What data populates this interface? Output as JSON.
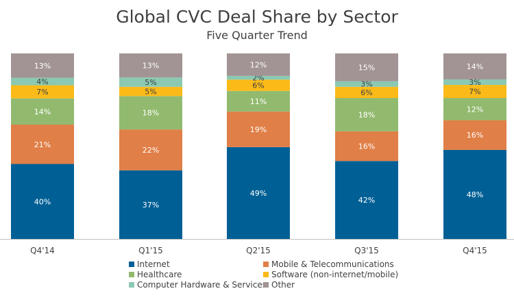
{
  "chart_data": {
    "type": "bar",
    "stacked": true,
    "title": "Global CVC Deal Share by Sector",
    "subtitle": "Five Quarter Trend",
    "categories": [
      "Q4'14",
      "Q1'15",
      "Q2'15",
      "Q3'15",
      "Q4'15"
    ],
    "series": [
      {
        "name": "Internet",
        "color": "#006096",
        "values": [
          40,
          37,
          49,
          42,
          48
        ]
      },
      {
        "name": "Mobile & Telecommunications",
        "color": "#E07F47",
        "values": [
          21,
          22,
          19,
          16,
          16
        ]
      },
      {
        "name": "Healthcare",
        "color": "#92BA6F",
        "values": [
          14,
          18,
          11,
          18,
          12
        ]
      },
      {
        "name": "Software (non-internet/mobile)",
        "color": "#FBBA18",
        "values": [
          7,
          5,
          6,
          6,
          7
        ]
      },
      {
        "name": "Computer Hardware & Services",
        "color": "#8BC9B2",
        "values": [
          4,
          5,
          2,
          3,
          3
        ]
      },
      {
        "name": "Other",
        "color": "#A29494",
        "values": [
          13,
          13,
          12,
          15,
          14
        ]
      }
    ],
    "data_labels": [
      [
        "40%",
        "37%",
        "49%",
        "42%",
        "48%"
      ],
      [
        "21%",
        "22%",
        "19%",
        "16%",
        "16%"
      ],
      [
        "14%",
        "18%",
        "11%",
        "18%",
        "12%"
      ],
      [
        "7%",
        "5%",
        "6%",
        "6%",
        "7%"
      ],
      [
        "4%",
        "5%",
        "2%",
        "3%",
        "3%"
      ],
      [
        "13%",
        "13%",
        "12%",
        "15%",
        "14%"
      ]
    ],
    "ylim": [
      0,
      100
    ],
    "grid": false,
    "legend_position": "bottom"
  }
}
